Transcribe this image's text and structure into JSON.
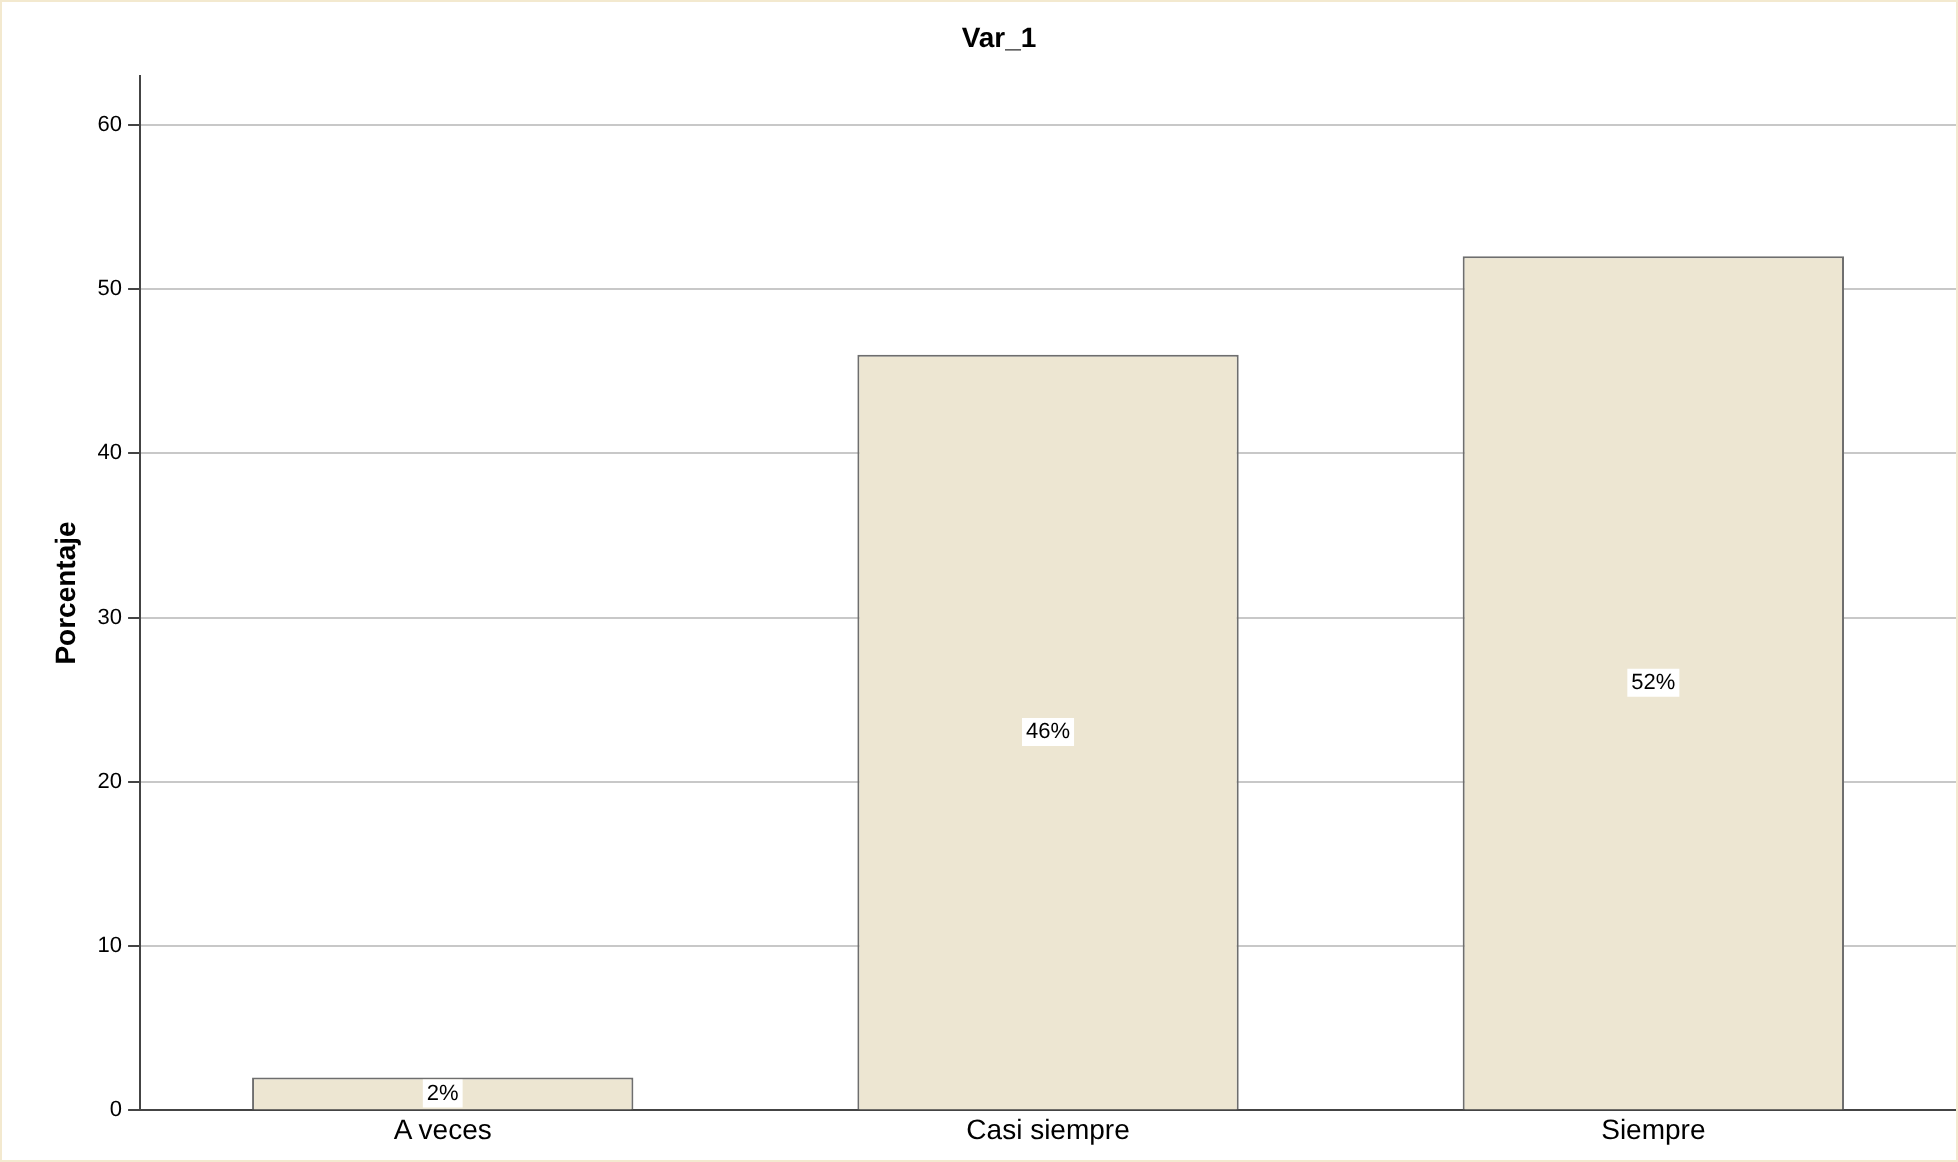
{
  "chart_data": {
    "type": "bar",
    "title": "Var_1",
    "ylabel": "Porcentaje",
    "categories": [
      "A veces",
      "Casi siempre",
      "Siempre"
    ],
    "values": [
      2,
      46,
      52
    ],
    "value_labels": [
      "2%",
      "46%",
      "52%"
    ],
    "color": "#ede6d2",
    "ylim": [
      0,
      63
    ],
    "yticks": [
      0,
      10,
      20,
      30,
      40,
      50,
      60
    ],
    "grid": "y",
    "legend": false
  }
}
